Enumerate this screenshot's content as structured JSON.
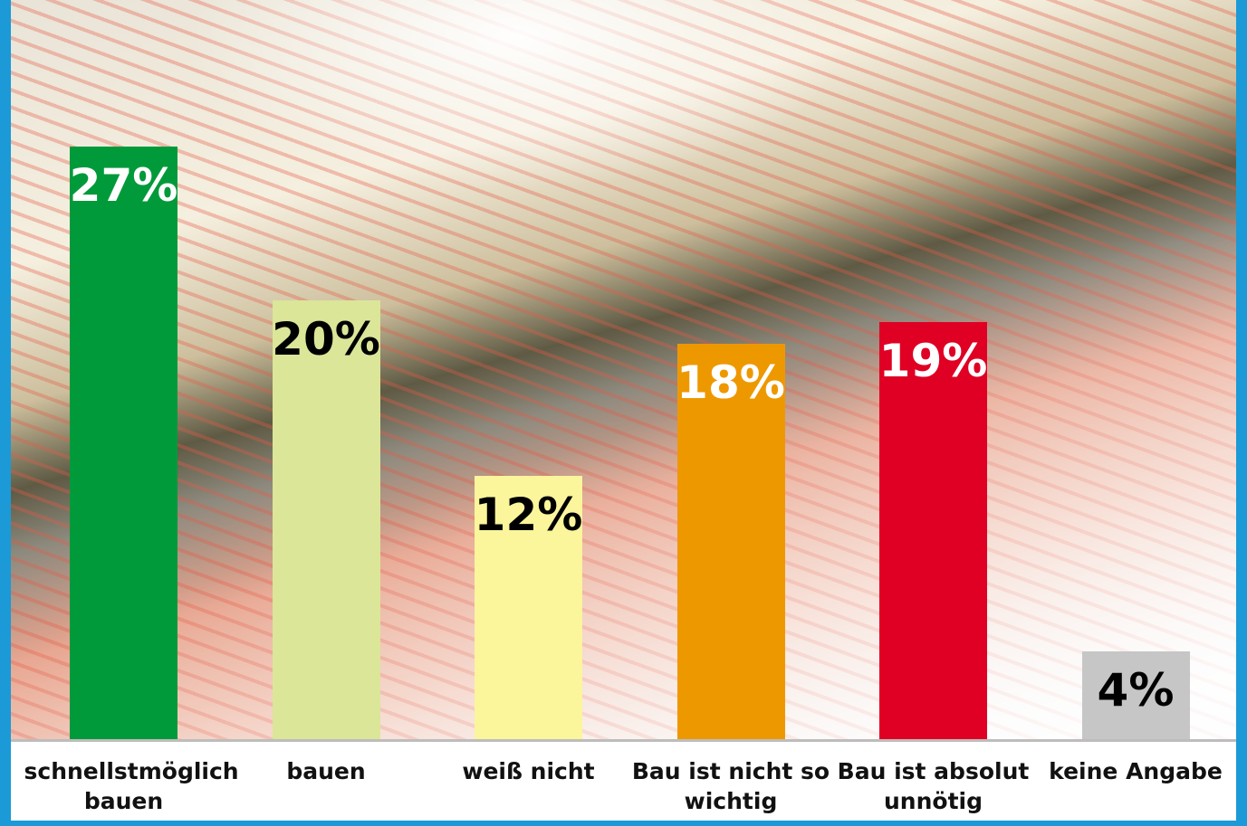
{
  "chart_data": {
    "type": "bar",
    "categories": [
      "schnellstmöglich bauen",
      "bauen",
      "weiß nicht",
      "Bau ist nicht so wichtig",
      "Bau ist absolut unnötig",
      "keine Angabe"
    ],
    "values": [
      27,
      20,
      12,
      18,
      19,
      4
    ],
    "value_labels": [
      "27%",
      "20%",
      "12%",
      "18%",
      "19%",
      "4%"
    ],
    "colors": [
      "#009a3a",
      "#dbe699",
      "#fbf59b",
      "#ee9800",
      "#df0024",
      "#c6c6c6"
    ],
    "label_colors": [
      "#ffffff",
      "#000000",
      "#000000",
      "#ffffff",
      "#ffffff",
      "#000000"
    ]
  }
}
